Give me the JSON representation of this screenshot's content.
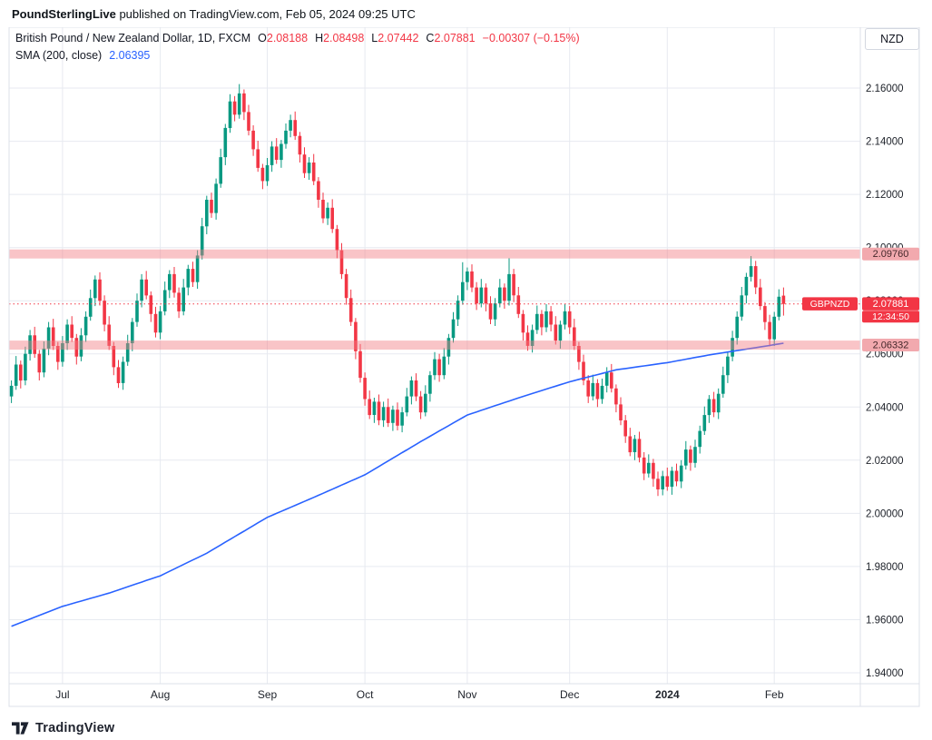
{
  "attribution": {
    "author": "PoundSterlingLive",
    "rest": " published on TradingView.com, Feb 05, 2024 09:25 UTC"
  },
  "legend": {
    "title": "British Pound / New Zealand Dollar, 1D, FXCM",
    "o_label": "O",
    "o_value": "2.08188",
    "h_label": "H",
    "h_value": "2.08498",
    "l_label": "L",
    "l_value": "2.07442",
    "c_label": "C",
    "c_value": "2.07881",
    "change": "−0.00307 (−0.15%)",
    "sma_label": "SMA (200, close)",
    "sma_value": "2.06395"
  },
  "currency_button": {
    "label": "NZD"
  },
  "footer": {
    "brand": "TradingView"
  },
  "colors": {
    "up": "#089981",
    "down": "#f23645",
    "sma": "#2962ff",
    "grid": "#e7eaf0",
    "frame": "#dde1e8",
    "text": "#20242c",
    "band": "#f27c82",
    "band_chip_bg": "#f2a9ae",
    "band_chip_text": "#44272a",
    "chip_text": "#ffffff"
  },
  "chart_data": {
    "type": "candlestick",
    "symbol": "GBPNZD",
    "symbol_name": "British Pound / New Zealand Dollar",
    "timeframe": "1D",
    "exchange": "FXCM",
    "ohlc_last": {
      "open": 2.08188,
      "high": 2.08498,
      "low": 2.07442,
      "close": 2.07881,
      "change": -0.00307,
      "change_pct": -0.15
    },
    "sma200_last": 2.06395,
    "price_axis": {
      "labels": [
        "2.16000",
        "2.14000",
        "2.12000",
        "2.10000",
        "2.08000",
        "2.06000",
        "2.04000",
        "2.02000",
        "2.00000",
        "1.98000",
        "1.96000",
        "1.94000"
      ],
      "values": [
        2.16,
        2.14,
        2.12,
        2.1,
        2.08,
        2.06,
        2.04,
        2.02,
        2.0,
        1.98,
        1.96,
        1.94
      ]
    },
    "time_axis": [
      {
        "label": "Jul",
        "index": 11
      },
      {
        "label": "Aug",
        "index": 32
      },
      {
        "label": "Sep",
        "index": 55
      },
      {
        "label": "Oct",
        "index": 76
      },
      {
        "label": "Nov",
        "index": 98
      },
      {
        "label": "Dec",
        "index": 120
      },
      {
        "label": "2024",
        "index": 141,
        "bold": true
      },
      {
        "label": "Feb",
        "index": 164
      }
    ],
    "levels": [
      {
        "label": "2.09760",
        "price": 2.0976,
        "top": 2.0993,
        "bottom": 2.0959
      },
      {
        "label": "2.06332",
        "price": 2.06332,
        "top": 2.065,
        "bottom": 2.0616
      }
    ],
    "last_price": {
      "label": "2.07881",
      "price": 2.07881,
      "countdown": "12:34:50",
      "symbol_label": "GBPNZD"
    },
    "sma200": {
      "anchors": [
        [
          0,
          1.9575
        ],
        [
          11,
          1.965
        ],
        [
          21,
          1.97
        ],
        [
          32,
          1.9765
        ],
        [
          42,
          1.985
        ],
        [
          55,
          1.9985
        ],
        [
          65,
          2.006
        ],
        [
          76,
          2.0145
        ],
        [
          88,
          2.027
        ],
        [
          98,
          2.037
        ],
        [
          110,
          2.044
        ],
        [
          120,
          2.0495
        ],
        [
          130,
          2.054
        ],
        [
          141,
          2.0567
        ],
        [
          150,
          2.0596
        ],
        [
          158,
          2.0618
        ],
        [
          166,
          2.064
        ]
      ]
    },
    "candles": [
      [
        2.044,
        2.05,
        2.0415,
        2.048
      ],
      [
        2.048,
        2.0592,
        2.0465,
        2.056
      ],
      [
        2.056,
        2.0575,
        2.047,
        2.05
      ],
      [
        2.05,
        2.0627,
        2.0482,
        2.06
      ],
      [
        2.06,
        2.069,
        2.0575,
        2.067
      ],
      [
        2.067,
        2.0702,
        2.0585,
        2.06
      ],
      [
        2.06,
        2.0615,
        2.05,
        2.053
      ],
      [
        2.053,
        2.0647,
        2.0512,
        2.062
      ],
      [
        2.062,
        2.072,
        2.0595,
        2.07
      ],
      [
        2.07,
        2.0732,
        2.0615,
        2.063
      ],
      [
        2.063,
        2.0645,
        2.054,
        2.057
      ],
      [
        2.057,
        2.0667,
        2.0552,
        2.064
      ],
      [
        2.064,
        2.073,
        2.0615,
        2.071
      ],
      [
        2.071,
        2.0742,
        2.0645,
        2.066
      ],
      [
        2.066,
        2.0675,
        2.056,
        2.059
      ],
      [
        2.059,
        2.0697,
        2.0572,
        2.067
      ],
      [
        2.067,
        2.076,
        2.0645,
        2.074
      ],
      [
        2.074,
        2.0842,
        2.0725,
        2.081
      ],
      [
        2.081,
        2.0895,
        2.078,
        2.088
      ],
      [
        2.088,
        2.0907,
        2.0782,
        2.08
      ],
      [
        2.08,
        2.082,
        2.0685,
        2.071
      ],
      [
        2.071,
        2.0742,
        2.0615,
        2.063
      ],
      [
        2.063,
        2.0645,
        2.052,
        2.055
      ],
      [
        2.055,
        2.0577,
        2.0472,
        2.049
      ],
      [
        2.049,
        2.059,
        2.0465,
        2.057
      ],
      [
        2.057,
        2.0672,
        2.0555,
        2.064
      ],
      [
        2.064,
        2.0735,
        2.061,
        2.072
      ],
      [
        2.072,
        2.0827,
        2.0702,
        2.08
      ],
      [
        2.08,
        2.09,
        2.0775,
        2.088
      ],
      [
        2.088,
        2.0912,
        2.0805,
        2.082
      ],
      [
        2.082,
        2.0835,
        2.072,
        2.075
      ],
      [
        2.075,
        2.0777,
        2.0662,
        2.068
      ],
      [
        2.068,
        2.078,
        2.0655,
        2.076
      ],
      [
        2.076,
        2.0872,
        2.0745,
        2.084
      ],
      [
        2.084,
        2.0915,
        2.081,
        2.09
      ],
      [
        2.09,
        2.0927,
        2.0812,
        2.083
      ],
      [
        2.083,
        2.085,
        2.0735,
        2.076
      ],
      [
        2.076,
        2.0882,
        2.0745,
        2.085
      ],
      [
        2.085,
        2.0935,
        2.082,
        2.092
      ],
      [
        2.092,
        2.0947,
        2.0852,
        2.087
      ],
      [
        2.087,
        2.099,
        2.0845,
        2.097
      ],
      [
        2.097,
        2.1112,
        2.0955,
        2.108
      ],
      [
        2.108,
        2.1195,
        2.105,
        2.118
      ],
      [
        2.118,
        2.1207,
        2.1112,
        2.113
      ],
      [
        2.113,
        2.126,
        2.1105,
        2.124
      ],
      [
        2.124,
        2.1372,
        2.1225,
        2.134
      ],
      [
        2.134,
        2.1465,
        2.131,
        2.145
      ],
      [
        2.145,
        2.1577,
        2.1432,
        2.155
      ],
      [
        2.155,
        2.157,
        2.1475,
        2.15
      ],
      [
        2.15,
        2.1615,
        2.1485,
        2.158
      ],
      [
        2.158,
        2.1595,
        2.148,
        2.151
      ],
      [
        2.151,
        2.1537,
        2.1422,
        2.144
      ],
      [
        2.144,
        2.146,
        2.1345,
        2.137
      ],
      [
        2.137,
        2.1402,
        2.1285,
        2.13
      ],
      [
        2.13,
        2.1315,
        2.122,
        2.125
      ],
      [
        2.125,
        2.1337,
        2.1232,
        2.131
      ],
      [
        2.131,
        2.14,
        2.1285,
        2.138
      ],
      [
        2.138,
        2.1412,
        2.1315,
        2.133
      ],
      [
        2.133,
        2.1405,
        2.13,
        2.139
      ],
      [
        2.139,
        2.1467,
        2.1372,
        2.144
      ],
      [
        2.144,
        2.15,
        2.1415,
        2.148
      ],
      [
        2.148,
        2.1512,
        2.1405,
        2.142
      ],
      [
        2.142,
        2.1435,
        2.132,
        2.135
      ],
      [
        2.135,
        2.1377,
        2.1262,
        2.128
      ],
      [
        2.128,
        2.134,
        2.1255,
        2.132
      ],
      [
        2.132,
        2.1352,
        2.1235,
        2.125
      ],
      [
        2.125,
        2.1265,
        2.115,
        2.118
      ],
      [
        2.118,
        2.1207,
        2.1092,
        2.111
      ],
      [
        2.111,
        2.117,
        2.1085,
        2.115
      ],
      [
        2.115,
        2.1182,
        2.1055,
        2.107
      ],
      [
        2.107,
        2.1085,
        2.096,
        2.099
      ],
      [
        2.099,
        2.1017,
        2.0882,
        2.09
      ],
      [
        2.09,
        2.092,
        2.0785,
        2.081
      ],
      [
        2.081,
        2.0842,
        2.0705,
        2.072
      ],
      [
        2.072,
        2.0735,
        2.058,
        2.061
      ],
      [
        2.061,
        2.0637,
        2.0492,
        2.051
      ],
      [
        2.051,
        2.053,
        2.0405,
        2.043
      ],
      [
        2.043,
        2.0462,
        2.0355,
        2.037
      ],
      [
        2.037,
        2.0435,
        2.034,
        2.042
      ],
      [
        2.042,
        2.0447,
        2.0332,
        2.035
      ],
      [
        2.035,
        2.042,
        2.0325,
        2.04
      ],
      [
        2.04,
        2.0432,
        2.0325,
        2.034
      ],
      [
        2.034,
        2.0405,
        2.031,
        2.039
      ],
      [
        2.039,
        2.0417,
        2.0312,
        2.033
      ],
      [
        2.033,
        2.04,
        2.0305,
        2.038
      ],
      [
        2.038,
        2.0472,
        2.0365,
        2.044
      ],
      [
        2.044,
        2.0515,
        2.041,
        2.05
      ],
      [
        2.05,
        2.0527,
        2.0422,
        2.044
      ],
      [
        2.044,
        2.046,
        2.0355,
        2.038
      ],
      [
        2.038,
        2.0482,
        2.0365,
        2.045
      ],
      [
        2.045,
        2.0535,
        2.042,
        2.052
      ],
      [
        2.052,
        2.0607,
        2.0502,
        2.058
      ],
      [
        2.058,
        2.06,
        2.0495,
        2.052
      ],
      [
        2.052,
        2.0622,
        2.0505,
        2.059
      ],
      [
        2.059,
        2.0675,
        2.056,
        2.066
      ],
      [
        2.066,
        2.0757,
        2.0642,
        2.073
      ],
      [
        2.073,
        2.082,
        2.0705,
        2.08
      ],
      [
        2.08,
        2.0945,
        2.0785,
        2.087
      ],
      [
        2.087,
        2.0925,
        2.084,
        2.091
      ],
      [
        2.091,
        2.0937,
        2.0832,
        2.085
      ],
      [
        2.085,
        2.087,
        2.0765,
        2.079
      ],
      [
        2.079,
        2.0882,
        2.0775,
        2.085
      ],
      [
        2.085,
        2.0865,
        2.076,
        2.079
      ],
      [
        2.079,
        2.0817,
        2.0712,
        2.073
      ],
      [
        2.073,
        2.081,
        2.0705,
        2.079
      ],
      [
        2.079,
        2.0882,
        2.0775,
        2.085
      ],
      [
        2.085,
        2.0865,
        2.077,
        2.08
      ],
      [
        2.08,
        2.096,
        2.0782,
        2.09
      ],
      [
        2.09,
        2.092,
        2.0795,
        2.082
      ],
      [
        2.082,
        2.0852,
        2.0735,
        2.075
      ],
      [
        2.075,
        2.0765,
        2.065,
        2.068
      ],
      [
        2.068,
        2.0707,
        2.0612,
        2.063
      ],
      [
        2.063,
        2.071,
        2.0605,
        2.069
      ],
      [
        2.069,
        2.0782,
        2.0675,
        2.075
      ],
      [
        2.075,
        2.0765,
        2.067,
        2.07
      ],
      [
        2.07,
        2.0787,
        2.0682,
        2.076
      ],
      [
        2.076,
        2.078,
        2.0685,
        2.071
      ],
      [
        2.071,
        2.0742,
        2.0635,
        2.065
      ],
      [
        2.065,
        2.0725,
        2.062,
        2.071
      ],
      [
        2.071,
        2.0787,
        2.0692,
        2.076
      ],
      [
        2.076,
        2.078,
        2.0675,
        2.07
      ],
      [
        2.07,
        2.0732,
        2.0615,
        2.063
      ],
      [
        2.063,
        2.0645,
        2.054,
        2.057
      ],
      [
        2.057,
        2.0597,
        2.0482,
        2.05
      ],
      [
        2.05,
        2.052,
        2.0415,
        2.044
      ],
      [
        2.044,
        2.0522,
        2.0425,
        2.049
      ],
      [
        2.049,
        2.0505,
        2.04,
        2.043
      ],
      [
        2.043,
        2.0507,
        2.0412,
        2.048
      ],
      [
        2.048,
        2.055,
        2.0455,
        2.053
      ],
      [
        2.053,
        2.0562,
        2.0455,
        2.047
      ],
      [
        2.047,
        2.0485,
        2.038,
        2.041
      ],
      [
        2.041,
        2.0437,
        2.0332,
        2.035
      ],
      [
        2.035,
        2.037,
        2.0265,
        2.029
      ],
      [
        2.029,
        2.0322,
        2.0215,
        2.023
      ],
      [
        2.023,
        2.0295,
        2.02,
        2.028
      ],
      [
        2.028,
        2.0307,
        2.0192,
        2.021
      ],
      [
        2.021,
        2.023,
        2.0125,
        2.015
      ],
      [
        2.015,
        2.0222,
        2.0135,
        2.019
      ],
      [
        2.019,
        2.0205,
        2.01,
        2.013
      ],
      [
        2.013,
        2.0157,
        2.0065,
        2.009
      ],
      [
        2.009,
        2.016,
        2.0068,
        2.014
      ],
      [
        2.014,
        2.0172,
        2.0085,
        2.01
      ],
      [
        2.01,
        2.0175,
        2.007,
        2.016
      ],
      [
        2.016,
        2.0187,
        2.0102,
        2.012
      ],
      [
        2.012,
        2.02,
        2.0095,
        2.018
      ],
      [
        2.018,
        2.0272,
        2.0165,
        2.024
      ],
      [
        2.024,
        2.0255,
        2.016,
        2.019
      ],
      [
        2.019,
        2.0277,
        2.0172,
        2.025
      ],
      [
        2.025,
        2.033,
        2.0225,
        2.031
      ],
      [
        2.031,
        2.0402,
        2.0295,
        2.037
      ],
      [
        2.037,
        2.0445,
        2.034,
        2.043
      ],
      [
        2.043,
        2.0457,
        2.0362,
        2.038
      ],
      [
        2.038,
        2.047,
        2.0355,
        2.045
      ],
      [
        2.045,
        2.0552,
        2.0435,
        2.052
      ],
      [
        2.052,
        2.0605,
        2.049,
        2.059
      ],
      [
        2.059,
        2.0687,
        2.0572,
        2.066
      ],
      [
        2.066,
        2.076,
        2.0635,
        2.074
      ],
      [
        2.074,
        2.0852,
        2.0725,
        2.082
      ],
      [
        2.082,
        2.0905,
        2.079,
        2.089
      ],
      [
        2.089,
        2.0968,
        2.0872,
        2.093
      ],
      [
        2.093,
        2.095,
        2.0825,
        2.085
      ],
      [
        2.085,
        2.0882,
        2.0765,
        2.078
      ],
      [
        2.078,
        2.0795,
        2.069,
        2.072
      ],
      [
        2.072,
        2.0747,
        2.0628,
        2.0655
      ],
      [
        2.0655,
        2.0758,
        2.063,
        2.074
      ],
      [
        2.074,
        2.0843,
        2.0726,
        2.0815
      ],
      [
        2.0819,
        2.085,
        2.0744,
        2.0788
      ]
    ]
  }
}
